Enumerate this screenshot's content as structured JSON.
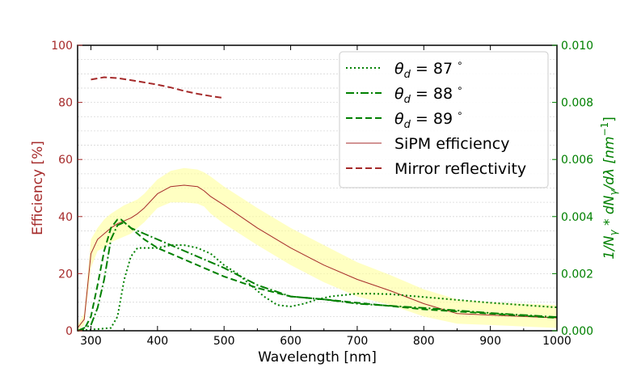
{
  "chart_data": {
    "type": "line",
    "xlabel": "Wavelength [nm]",
    "ylabel_left": "Efficiency [%]",
    "ylabel_right": "1/N",
    "ylabel_right_sub": "γ",
    "ylabel_right_mid": " * dN",
    "ylabel_right_sub2": "γ",
    "ylabel_right_tail": "/dλ [nm",
    "ylabel_right_sup": "−1",
    "ylabel_right_end": "]",
    "xlim": [
      280,
      1000
    ],
    "ylim_left": [
      0,
      100
    ],
    "ylim_right": [
      0,
      0.01
    ],
    "xticks": [
      "300",
      "400",
      "500",
      "600",
      "700",
      "800",
      "900",
      "1000"
    ],
    "yticks_left": [
      "0",
      "20",
      "40",
      "60",
      "80",
      "100"
    ],
    "yticks_right": [
      "0.000",
      "0.002",
      "0.004",
      "0.006",
      "0.008",
      "0.010"
    ],
    "colors": {
      "left_axis": "#a52a2a",
      "right_axis": "#008000",
      "band": "#ffff99"
    },
    "legend": {
      "theta_label": "θ",
      "theta_sub": "d",
      "eq": " = ",
      "deg": "∘",
      "entries": [
        {
          "id": "t87",
          "value": "87",
          "style": "dotted"
        },
        {
          "id": "t88",
          "value": "88",
          "style": "dashdot"
        },
        {
          "id": "t89",
          "value": "89",
          "style": "dashed"
        }
      ],
      "sipm": "SiPM efficiency",
      "mirror": "Mirror reflectivity"
    },
    "series": [
      {
        "name": "SiPM efficiency",
        "axis": "left",
        "x": [
          280,
          290,
          300,
          310,
          320,
          330,
          340,
          350,
          360,
          370,
          380,
          400,
          420,
          440,
          460,
          470,
          480,
          500,
          550,
          600,
          650,
          700,
          750,
          800,
          850,
          900,
          950,
          1000
        ],
        "y": [
          1,
          4,
          27,
          32,
          34,
          36,
          37.5,
          38.5,
          39.5,
          41,
          43,
          48,
          50.5,
          51,
          50.5,
          49,
          47,
          44,
          36,
          29,
          23,
          18,
          14,
          9.5,
          6,
          5.5,
          5,
          4.5
        ]
      },
      {
        "name": "SiPM efficiency upper band",
        "axis": "left",
        "x": [
          280,
          290,
          300,
          310,
          320,
          330,
          340,
          350,
          360,
          370,
          380,
          400,
          420,
          440,
          460,
          470,
          480,
          500,
          550,
          600,
          650,
          700,
          750,
          800,
          850,
          900,
          950,
          1000
        ],
        "y": [
          2,
          6,
          32,
          36,
          39,
          41,
          42.5,
          44,
          45,
          46,
          48,
          53,
          56,
          57,
          56.5,
          55.5,
          54,
          50.5,
          43,
          36,
          30,
          24,
          19.5,
          14.5,
          11,
          10,
          9.5,
          9
        ]
      },
      {
        "name": "SiPM efficiency lower band",
        "axis": "left",
        "x": [
          280,
          290,
          300,
          310,
          320,
          330,
          340,
          350,
          360,
          370,
          380,
          400,
          420,
          440,
          460,
          470,
          480,
          500,
          550,
          600,
          650,
          700,
          750,
          800,
          850,
          900,
          950,
          1000
        ],
        "y": [
          0,
          2,
          22,
          28,
          29,
          31,
          32,
          33,
          34,
          36,
          38,
          43,
          45,
          45,
          44.5,
          43.5,
          41,
          37.5,
          30,
          23,
          17,
          12,
          9,
          5,
          2.5,
          2,
          1.5,
          1
        ]
      },
      {
        "name": "Mirror reflectivity",
        "axis": "left",
        "x": [
          300,
          320,
          340,
          360,
          380,
          400,
          420,
          440,
          460,
          480,
          500
        ],
        "y": [
          88,
          88.8,
          88.5,
          87.8,
          87,
          86.2,
          85.2,
          84,
          83,
          82.2,
          81.5
        ]
      },
      {
        "name": "θd = 87°",
        "axis": "right",
        "x": [
          280,
          330,
          340,
          350,
          360,
          370,
          380,
          400,
          420,
          440,
          460,
          480,
          500,
          520,
          540,
          560,
          580,
          600,
          620,
          640,
          660,
          680,
          700,
          720,
          750,
          800,
          900,
          1000
        ],
        "y": [
          0,
          0.0001,
          0.0005,
          0.0018,
          0.0026,
          0.0029,
          0.0029,
          0.0029,
          0.003,
          0.003,
          0.0029,
          0.0027,
          0.0023,
          0.002,
          0.0016,
          0.0012,
          0.0009,
          0.00085,
          0.00095,
          0.0011,
          0.0012,
          0.00125,
          0.0013,
          0.0013,
          0.00128,
          0.00118,
          0.00098,
          0.00082
        ]
      },
      {
        "name": "θd = 88°",
        "axis": "right",
        "x": [
          280,
          300,
          310,
          320,
          330,
          340,
          350,
          360,
          380,
          400,
          450,
          500,
          550,
          600,
          650,
          700,
          800,
          900,
          1000
        ],
        "y": [
          0,
          0.0002,
          0.0008,
          0.0018,
          0.0032,
          0.0037,
          0.0038,
          0.0036,
          0.0034,
          0.0032,
          0.0027,
          0.0022,
          0.0016,
          0.0012,
          0.0011,
          0.00095,
          0.0008,
          0.00062,
          0.00048
        ]
      },
      {
        "name": "θd = 89°",
        "axis": "right",
        "x": [
          280,
          290,
          300,
          310,
          320,
          330,
          340,
          345,
          350,
          360,
          380,
          400,
          450,
          500,
          550,
          600,
          650,
          700,
          800,
          900,
          1000
        ],
        "y": [
          0,
          5e-05,
          0.0005,
          0.0016,
          0.0028,
          0.0036,
          0.0039,
          0.0039,
          0.0038,
          0.0036,
          0.0032,
          0.0029,
          0.0024,
          0.0019,
          0.0015,
          0.0012,
          0.0011,
          0.00098,
          0.00075,
          0.0006,
          0.00045
        ]
      }
    ]
  }
}
